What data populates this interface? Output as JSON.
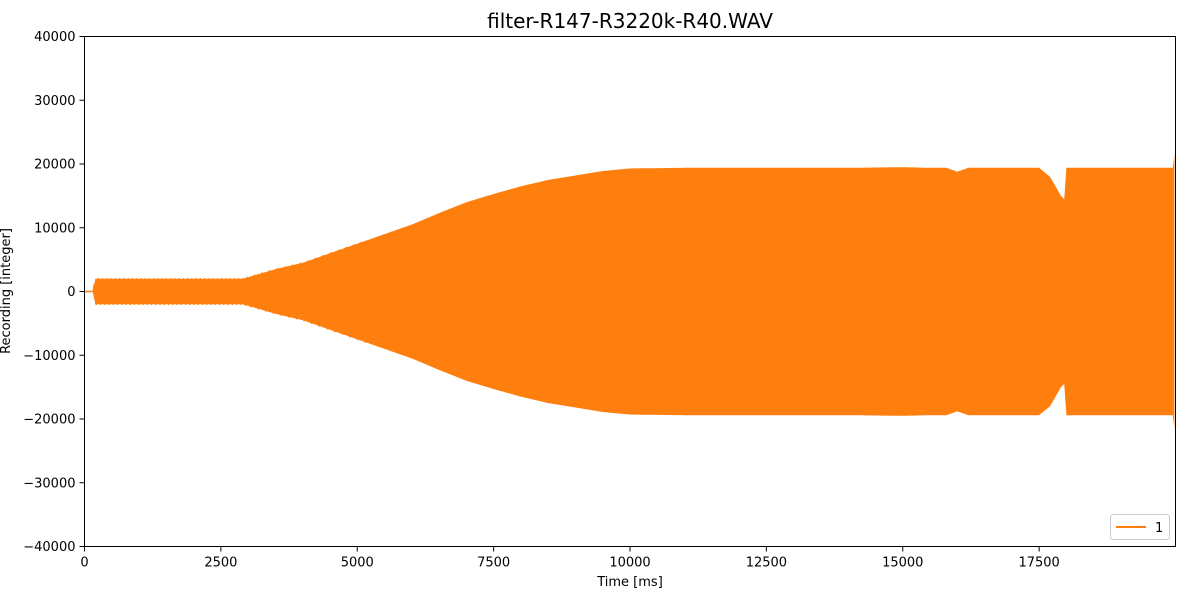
{
  "chart_data": {
    "type": "line",
    "title": "filter-R147-R3220k-R40.WAV",
    "xlabel": "Time [ms]",
    "ylabel": "Recording [integer]",
    "xlim": [
      0,
      20000
    ],
    "ylim": [
      -40000,
      40000
    ],
    "xticks": [
      0,
      2500,
      5000,
      7500,
      10000,
      12500,
      15000,
      17500
    ],
    "yticks": [
      -40000,
      -30000,
      -20000,
      -10000,
      0,
      10000,
      20000,
      30000,
      40000
    ],
    "grid": false,
    "legend_position": "lower-right",
    "series": [
      {
        "name": "1",
        "color": "#ff7f0e",
        "envelope_time_ms": [
          0,
          150,
          200,
          2900,
          3100,
          3500,
          4000,
          4500,
          5000,
          5500,
          6000,
          6500,
          7000,
          7500,
          8000,
          8500,
          9000,
          9500,
          10000,
          11000,
          12000,
          13000,
          14000,
          15000,
          15500,
          15800,
          16000,
          16200,
          17000,
          17500,
          17700,
          17900,
          17960,
          18000,
          19000,
          19950,
          19980
        ],
        "envelope_amplitude": [
          0,
          0,
          2000,
          2000,
          2500,
          3500,
          4500,
          6000,
          7500,
          9000,
          10500,
          12300,
          14000,
          15300,
          16500,
          17500,
          18200,
          18900,
          19300,
          19400,
          19400,
          19400,
          19400,
          19500,
          19400,
          19400,
          18800,
          19400,
          19400,
          19400,
          18000,
          15000,
          14500,
          19400,
          19400,
          19400,
          21500
        ]
      }
    ]
  }
}
